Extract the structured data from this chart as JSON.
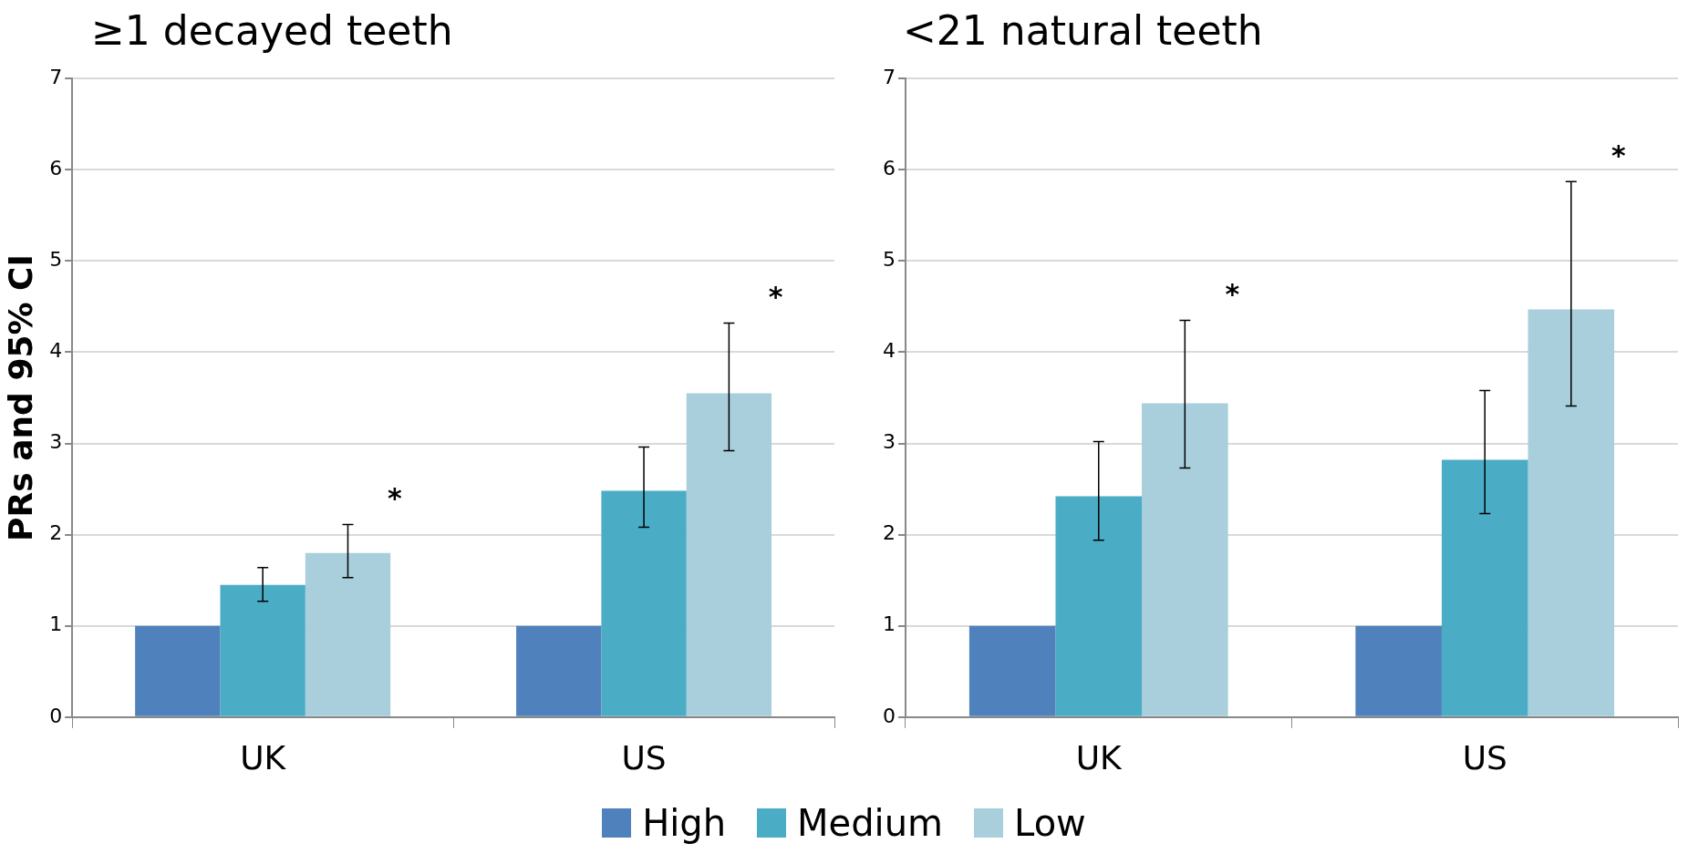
{
  "chart_data": [
    {
      "type": "bar",
      "title": "≥1 decayed teeth",
      "ylabel": "PRs and 95% CI",
      "categories": [
        "UK",
        "US"
      ],
      "series": [
        {
          "name": "High",
          "color": "#4f81bd",
          "values": [
            1,
            1
          ]
        },
        {
          "name": "Medium",
          "color": "#4bacc6",
          "values": [
            1.45,
            2.48
          ],
          "errors": [
            [
              1.27,
              1.64
            ],
            [
              2.08,
              2.96
            ]
          ]
        },
        {
          "name": "Low",
          "color": "#a9cedc",
          "values": [
            1.8,
            3.55
          ],
          "errors": [
            [
              1.53,
              2.11
            ],
            [
              2.92,
              4.32
            ]
          ]
        }
      ],
      "ylim": [
        0,
        7
      ],
      "yticks": [
        0,
        1,
        2,
        3,
        4,
        5,
        6,
        7
      ],
      "grid": "y",
      "legend": "bottom",
      "annotations": [
        "*",
        "*"
      ]
    },
    {
      "type": "bar",
      "title": "<21 natural teeth",
      "categories": [
        "UK",
        "US"
      ],
      "series": [
        {
          "color": "#4f81bd",
          "values": [
            1,
            1
          ]
        },
        {
          "color": "#4bacc6",
          "values": [
            2.42,
            2.82
          ],
          "errors": [
            [
              1.94,
              3.02
            ],
            [
              2.23,
              3.58
            ]
          ]
        },
        {
          "color": "#a9cedc",
          "values": [
            3.44,
            4.47
          ],
          "errors": [
            [
              2.73,
              4.35
            ],
            [
              3.41,
              5.87
            ]
          ]
        }
      ],
      "ylim": [
        0,
        7
      ],
      "yticks": [
        0,
        1,
        2,
        3,
        4,
        5,
        6,
        7
      ],
      "grid": "y",
      "annotations": [
        "*",
        "*"
      ]
    }
  ]
}
